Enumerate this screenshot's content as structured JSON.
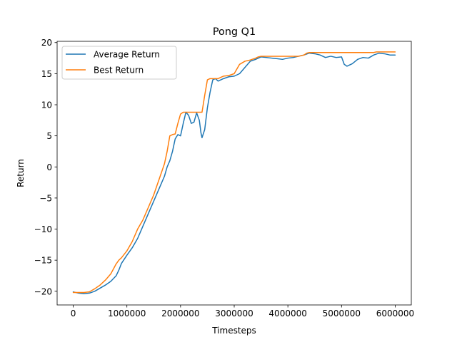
{
  "chart_data": {
    "type": "line",
    "title": "Pong Q1",
    "xlabel": "Timesteps",
    "ylabel": "Return",
    "xlim": [
      -300000,
      6300000
    ],
    "ylim": [
      -22.2,
      20.2
    ],
    "xticks": [
      0,
      1000000,
      2000000,
      3000000,
      4000000,
      5000000,
      6000000
    ],
    "xtick_labels": [
      "0",
      "1000000",
      "2000000",
      "3000000",
      "4000000",
      "5000000",
      "6000000"
    ],
    "yticks": [
      -20,
      -15,
      -10,
      -5,
      0,
      5,
      10,
      15,
      20
    ],
    "ytick_labels": [
      "−20",
      "−15",
      "−10",
      "−5",
      "0",
      "5",
      "10",
      "15",
      "20"
    ],
    "grid": false,
    "legend_position": "upper-left",
    "series": [
      {
        "name": "Average Return",
        "color": "#1f77b4",
        "x": [
          0,
          100000,
          200000,
          300000,
          400000,
          500000,
          600000,
          700000,
          800000,
          850000,
          900000,
          1000000,
          1100000,
          1200000,
          1300000,
          1400000,
          1500000,
          1550000,
          1600000,
          1700000,
          1750000,
          1800000,
          1850000,
          1900000,
          1950000,
          2000000,
          2050000,
          2100000,
          2150000,
          2200000,
          2250000,
          2300000,
          2350000,
          2380000,
          2400000,
          2450000,
          2500000,
          2550000,
          2600000,
          2650000,
          2700000,
          2800000,
          2900000,
          3000000,
          3100000,
          3200000,
          3300000,
          3400000,
          3500000,
          3600000,
          3700000,
          3800000,
          3900000,
          4000000,
          4100000,
          4200000,
          4300000,
          4400000,
          4500000,
          4600000,
          4700000,
          4800000,
          4900000,
          5000000,
          5050000,
          5100000,
          5200000,
          5300000,
          5400000,
          5500000,
          5600000,
          5700000,
          5800000,
          5900000,
          6000000
        ],
        "y": [
          -20.1,
          -20.3,
          -20.4,
          -20.3,
          -20,
          -19.5,
          -19,
          -18.4,
          -17.5,
          -16.6,
          -15.5,
          -14.2,
          -13,
          -11.5,
          -9.5,
          -7.5,
          -5.5,
          -4.5,
          -3.5,
          -1.5,
          0,
          1,
          2.5,
          4.5,
          5.2,
          5,
          7,
          8.8,
          8.3,
          7,
          7.2,
          8.7,
          7.5,
          5.5,
          4.7,
          6,
          9.5,
          12,
          14,
          14.2,
          13.8,
          14.2,
          14.5,
          14.6,
          15,
          16,
          17,
          17.3,
          17.7,
          17.6,
          17.5,
          17.4,
          17.3,
          17.5,
          17.6,
          17.8,
          18,
          18.3,
          18.2,
          18,
          17.6,
          17.8,
          17.6,
          17.7,
          16.5,
          16.2,
          16.6,
          17.3,
          17.6,
          17.5,
          18,
          18.3,
          18.2,
          18,
          18
        ]
      },
      {
        "name": "Best Return",
        "color": "#ff7f0e",
        "x": [
          0,
          100000,
          200000,
          300000,
          400000,
          500000,
          600000,
          700000,
          800000,
          850000,
          900000,
          1000000,
          1100000,
          1200000,
          1300000,
          1400000,
          1500000,
          1600000,
          1700000,
          1750000,
          1800000,
          1850000,
          1900000,
          1950000,
          2000000,
          2050000,
          2100000,
          2200000,
          2300000,
          2400000,
          2450000,
          2500000,
          2550000,
          2600000,
          2700000,
          2750000,
          2800000,
          2900000,
          3000000,
          3100000,
          3200000,
          3300000,
          3400000,
          3450000,
          3500000,
          4000000,
          4200000,
          4300000,
          4350000,
          4400000,
          5000000,
          5500000,
          5600000,
          5650000,
          5700000,
          6000000
        ],
        "y": [
          -20.2,
          -20.2,
          -20.2,
          -20.1,
          -19.6,
          -19,
          -18.2,
          -17.2,
          -15.6,
          -15,
          -14.6,
          -13.5,
          -12,
          -10,
          -8.5,
          -6.5,
          -4.5,
          -2,
          0.5,
          2.5,
          5,
          5.2,
          5.3,
          7,
          8.5,
          8.8,
          8.8,
          8.8,
          8.8,
          8.8,
          11.5,
          14,
          14.2,
          14.2,
          14.2,
          14.4,
          14.6,
          14.7,
          15,
          16.5,
          17,
          17.2,
          17.5,
          17.7,
          17.8,
          17.8,
          17.8,
          18,
          18.3,
          18.4,
          18.4,
          18.4,
          18.4,
          18.5,
          18.5,
          18.5
        ]
      }
    ]
  }
}
